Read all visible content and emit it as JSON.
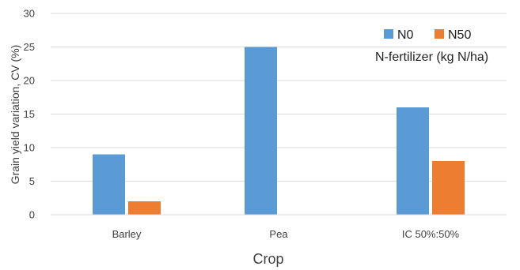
{
  "chart_data": {
    "type": "bar",
    "title": "",
    "xlabel": "Crop",
    "ylabel": "Grain yield variation, CV (%)",
    "categories": [
      "Barley",
      "Pea",
      "IC 50%:50%"
    ],
    "series": [
      {
        "name": "N0",
        "values": [
          9,
          25,
          16
        ],
        "color": "#5b9bd5"
      },
      {
        "name": "N50",
        "values": [
          2,
          0,
          8
        ],
        "color": "#ed7d31"
      }
    ],
    "ylim": [
      0,
      30
    ],
    "yticks": [
      "0",
      "5",
      "10",
      "15",
      "20",
      "25",
      "30"
    ],
    "grid": true,
    "legend": {
      "placement": "top-right",
      "title": "N-fertilizer (kg N/ha)"
    }
  }
}
